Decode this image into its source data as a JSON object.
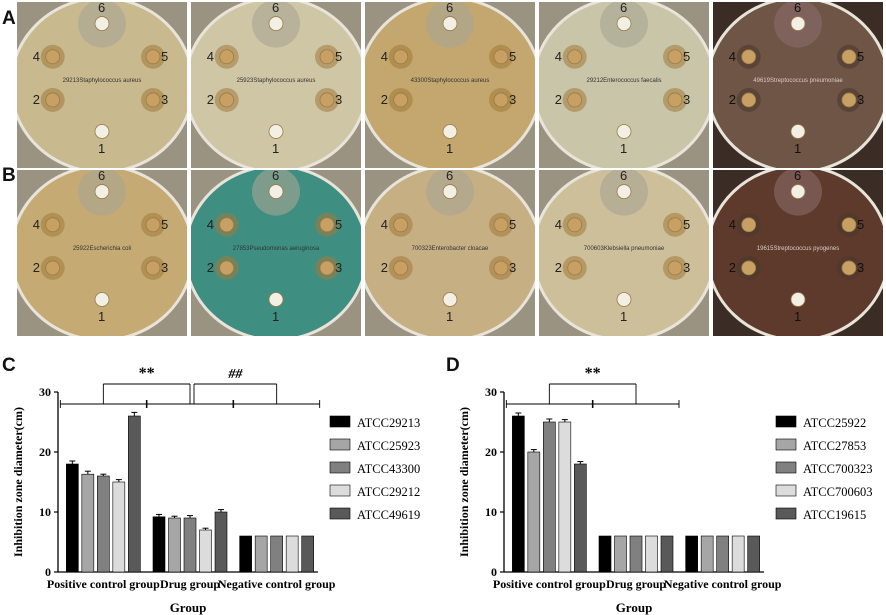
{
  "panels": {
    "A": "A",
    "B": "B",
    "C": "C",
    "D": "D"
  },
  "plate_rows": [
    {
      "row": "A",
      "plates": [
        {
          "organism": "29213Staphylococcus aureus",
          "tone": "#c8b98e"
        },
        {
          "organism": "25923Staphylococcus aureus",
          "tone": "#cfc6a6"
        },
        {
          "organism": "43300Staphylococcus aureus",
          "tone": "#c3a76e"
        },
        {
          "organism": "29212Enterococcus faecalis",
          "tone": "#c9c5a9"
        },
        {
          "organism": "49619Streptococcus pneumoniae",
          "tone": "#6e5546"
        }
      ]
    },
    {
      "row": "B",
      "plates": [
        {
          "organism": "25922Escherichia coli",
          "tone": "#c6aa74"
        },
        {
          "organism": "27853Pseudomonas aeruginosa",
          "tone": "#3e8f82"
        },
        {
          "organism": "700323Enterobacter cloacae",
          "tone": "#c7af84"
        },
        {
          "organism": "700603Klebsiella pneumoniae",
          "tone": "#cdbf9a"
        },
        {
          "organism": "19615Streptococcus pyogenes",
          "tone": "#5e3a2c"
        }
      ]
    }
  ],
  "disc_numbers": [
    "1",
    "2",
    "3",
    "4",
    "5",
    "6"
  ],
  "chart_data": [
    {
      "type": "bar",
      "panel": "C",
      "categories": [
        "Positive control group",
        "Drug group",
        "Negative control group"
      ],
      "xlabel": "Group",
      "ylabel": "Inhibition zone diameter(cm)",
      "ylim": [
        0,
        30
      ],
      "yticks": [
        "0",
        "10",
        "20",
        "30"
      ],
      "significance": [
        "**",
        "##"
      ],
      "series": [
        {
          "name": "ATCC29213",
          "color": "#000000",
          "values": [
            18,
            9.2,
            6
          ],
          "errors": [
            0.5,
            0.4,
            0
          ]
        },
        {
          "name": "ATCC25923",
          "color": "#a6a6a6",
          "values": [
            16.3,
            9.0,
            6
          ],
          "errors": [
            0.5,
            0.3,
            0
          ]
        },
        {
          "name": "ATCC43300",
          "color": "#808080",
          "values": [
            16.0,
            9.0,
            6
          ],
          "errors": [
            0.3,
            0.4,
            0
          ]
        },
        {
          "name": "ATCC29212",
          "color": "#dcdcdc",
          "values": [
            15.0,
            7.0,
            6
          ],
          "errors": [
            0.4,
            0.3,
            0
          ]
        },
        {
          "name": "ATCC49619",
          "color": "#595959",
          "values": [
            26.0,
            10.0,
            6
          ],
          "errors": [
            0.6,
            0.4,
            0
          ]
        }
      ]
    },
    {
      "type": "bar",
      "panel": "D",
      "categories": [
        "Positive control group",
        "Drug group",
        "Negative control group"
      ],
      "xlabel": "Group",
      "ylabel": "Inhibition zone diameter(cm)",
      "ylim": [
        0,
        30
      ],
      "yticks": [
        "0",
        "10",
        "20",
        "30"
      ],
      "significance": [
        "**"
      ],
      "series": [
        {
          "name": "ATCC25922",
          "color": "#000000",
          "values": [
            26.0,
            6,
            6
          ],
          "errors": [
            0.5,
            0,
            0
          ]
        },
        {
          "name": "ATCC27853",
          "color": "#a6a6a6",
          "values": [
            20.0,
            6,
            6
          ],
          "errors": [
            0.4,
            0,
            0
          ]
        },
        {
          "name": "ATCC700323",
          "color": "#808080",
          "values": [
            25.0,
            6,
            6
          ],
          "errors": [
            0.5,
            0,
            0
          ]
        },
        {
          "name": "ATCC700603",
          "color": "#dcdcdc",
          "values": [
            25.0,
            6,
            6
          ],
          "errors": [
            0.4,
            0,
            0
          ]
        },
        {
          "name": "ATCC19615",
          "color": "#595959",
          "values": [
            18.0,
            6,
            6
          ],
          "errors": [
            0.4,
            0,
            0
          ]
        }
      ]
    }
  ]
}
